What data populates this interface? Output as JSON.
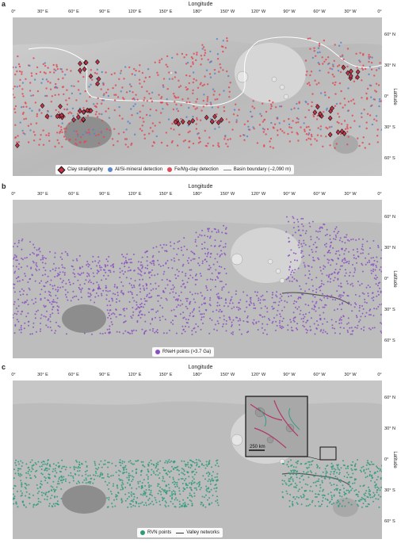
{
  "axes": {
    "longitude_title": "Longitude",
    "latitude_title": "Latitude",
    "lon_ticks": [
      "0°",
      "30° E",
      "60° E",
      "90° E",
      "120° E",
      "150° E",
      "180°",
      "150° W",
      "120° W",
      "90° W",
      "60° W",
      "30° W",
      "0°"
    ],
    "lat_ticks": [
      "60° N",
      "30° N",
      "0°",
      "30° S",
      "60° S"
    ]
  },
  "colors": {
    "clay": "#c43248",
    "alsi": "#5b86c9",
    "femg": "#df4c57",
    "basin": "#ffffff",
    "rneh": "#8a4fc2",
    "rvn": "#2f9a7a",
    "valley": "#6a2b4a"
  },
  "panels": [
    {
      "letter": "a",
      "legend": [
        {
          "symbol": "diamond",
          "label": "Clay stratigraphy"
        },
        {
          "symbol": "dot-blue",
          "label": "Al/Si-mineral detection"
        },
        {
          "symbol": "dot-red",
          "label": "Fe/Mg-clay detection"
        },
        {
          "symbol": "line",
          "label": "Basin boundary (–2,090 m)"
        }
      ]
    },
    {
      "letter": "b",
      "legend": [
        {
          "symbol": "dot-purple",
          "label": "RNeH points (>3.7 Ga)"
        }
      ]
    },
    {
      "letter": "c",
      "inset_scale": "250 km",
      "legend": [
        {
          "symbol": "dot-green",
          "label": "RVN points"
        },
        {
          "symbol": "line-dark",
          "label": "Valley networks"
        }
      ]
    }
  ]
}
